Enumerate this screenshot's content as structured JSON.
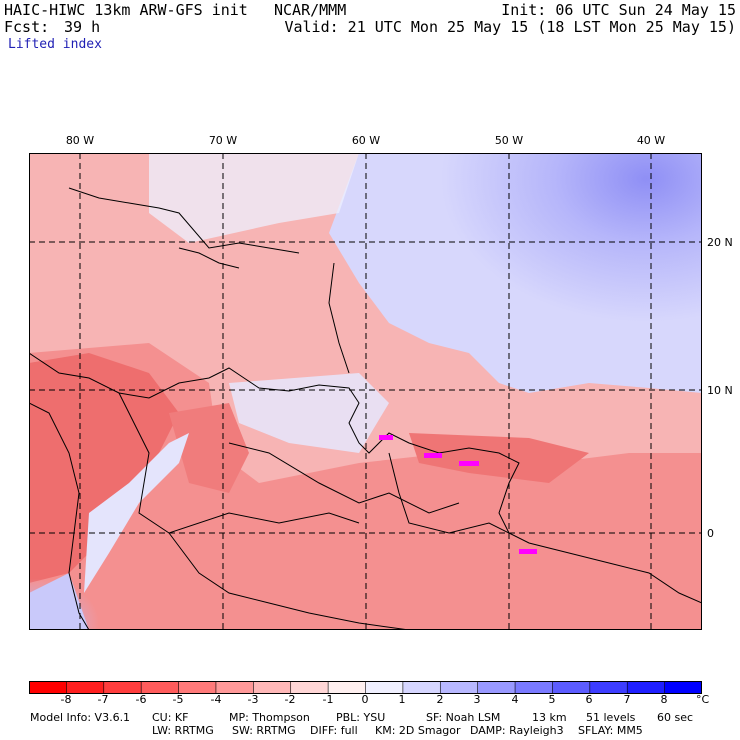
{
  "header": {
    "model_title": "HAIC-HIWC 13km ARW-GFS init",
    "org": "NCAR/MMM",
    "init": "Init: 06 UTC Sun 24 May 15",
    "fcst_label": "Fcst:",
    "fcst_value": "39 h",
    "valid": "Valid: 21 UTC Mon 25 May 15 (18 LST Mon 25 May 15)",
    "field": "Lifted index"
  },
  "map": {
    "lon_labels": [
      "80 W",
      "70 W",
      "60 W",
      "50 W",
      "40 W"
    ],
    "lat_labels": [
      "20 N",
      "10 N",
      "0"
    ]
  },
  "colorbar": {
    "tick_labels": [
      "-8",
      "-7",
      "-6",
      "-5",
      "-4",
      "-3",
      "-2",
      "-1",
      "0",
      "1",
      "2",
      "3",
      "4",
      "5",
      "6",
      "7",
      "8"
    ],
    "unit": "°C",
    "colors": [
      "#ff0000",
      "#ff1f1f",
      "#ff3d3d",
      "#ff5c5c",
      "#ff7a7a",
      "#ff9999",
      "#ffb8b8",
      "#ffd6d6",
      "#fff0f0",
      "#f0f0ff",
      "#d6d6ff",
      "#b8b8ff",
      "#9999ff",
      "#7a7aff",
      "#5c5cff",
      "#3d3dff",
      "#1f1fff",
      "#0000ff"
    ]
  },
  "footer": {
    "model_info": "Model Info: V3.6.1",
    "cu": "CU: KF",
    "mp": "MP: Thompson",
    "pbl": "PBL: YSU",
    "sf": "SF: Noah LSM",
    "res": "13 km",
    "levels": "51 levels",
    "dt": "60 sec",
    "lw": "LW: RRTMG",
    "sw": "SW: RRTMG",
    "diff": "DIFF: full",
    "km": "KM: 2D Smagor",
    "damp": "DAMP: Rayleigh3",
    "sflay": "SFLAY: MM5"
  }
}
